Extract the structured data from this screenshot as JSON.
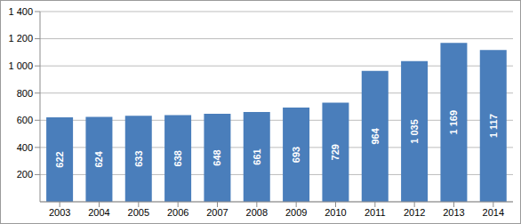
{
  "chart_data": {
    "type": "bar",
    "categories": [
      "2003",
      "2004",
      "2005",
      "2006",
      "2007",
      "2008",
      "2009",
      "2010",
      "2011",
      "2012",
      "2013",
      "2014"
    ],
    "values": [
      622,
      624,
      633,
      638,
      648,
      661,
      693,
      729,
      964,
      1035,
      1169,
      1117
    ],
    "value_labels": [
      "622",
      "624",
      "633",
      "638",
      "648",
      "661",
      "693",
      "729",
      "964",
      "1 035",
      "1 169",
      "1 117"
    ],
    "data_labels": true,
    "color": "#4a7ebb",
    "ylim": [
      0,
      1400
    ],
    "yticks": [
      200,
      400,
      600,
      800,
      {
        "value": 1000,
        "label": "1 000"
      },
      {
        "value": 1200,
        "label": "1 200"
      },
      {
        "value": 1400,
        "label": "1 400"
      }
    ],
    "grid": true
  }
}
